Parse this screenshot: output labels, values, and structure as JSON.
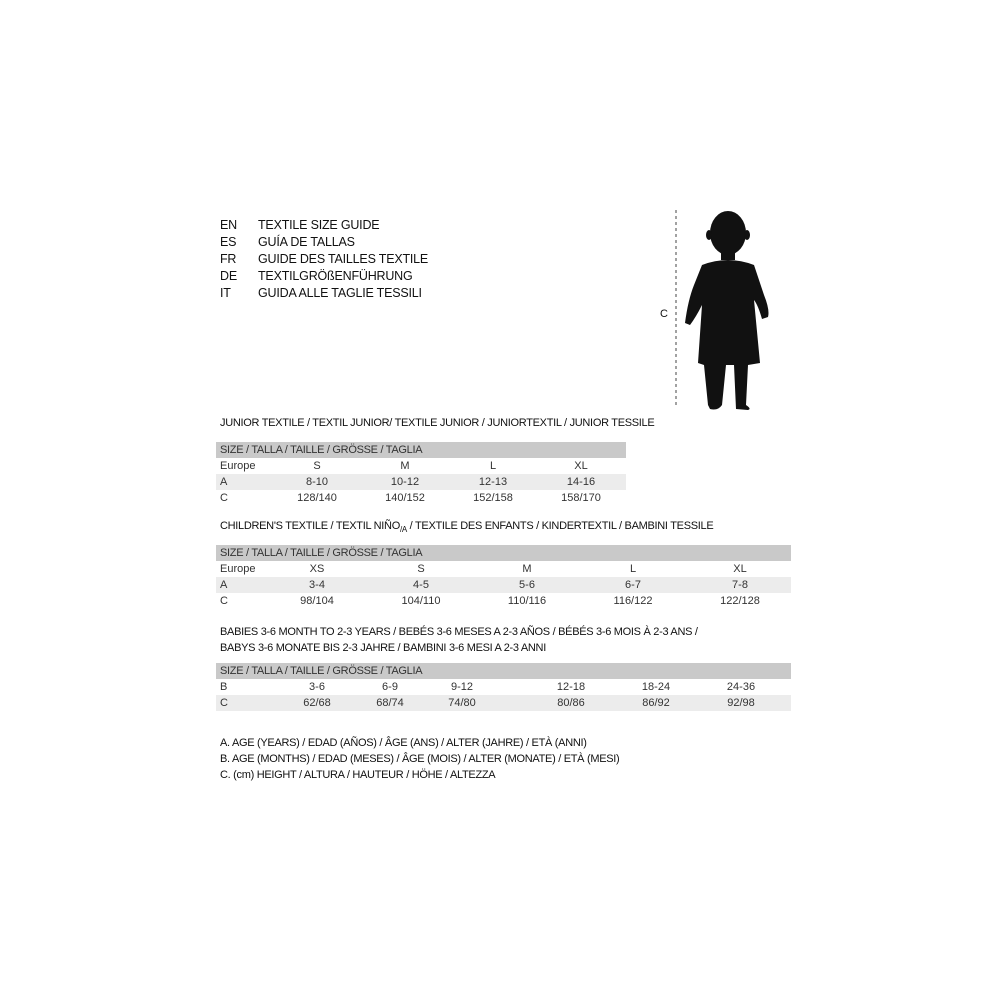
{
  "title_languages": [
    {
      "code": "EN",
      "text": "TEXTILE SIZE GUIDE"
    },
    {
      "code": "ES",
      "text": "GUÍA DE TALLAS"
    },
    {
      "code": "FR",
      "text": "GUIDE DES TAILLES TEXTILE"
    },
    {
      "code": "DE",
      "text": "TEXTILGRÖßENFÜHRUNG"
    },
    {
      "code": "IT",
      "text": "GUIDA ALLE TAGLIE TESSILI"
    }
  ],
  "figure": {
    "label": "C"
  },
  "size_header": "SIZE / TALLA / TAILLE / GRÖSSE / TAGLIA",
  "junior": {
    "title": "JUNIOR TEXTILE / TEXTIL JUNIOR/ TEXTILE JUNIOR / JUNIORTEXTIL / JUNIOR TESSILE",
    "rows": [
      {
        "label": "Europe",
        "values": [
          "S",
          "M",
          "L",
          "XL"
        ]
      },
      {
        "label": "A",
        "values": [
          "8-10",
          "10-12",
          "12-13",
          "14-16"
        ]
      },
      {
        "label": "C",
        "values": [
          "128/140",
          "140/152",
          "152/158",
          "158/170"
        ]
      }
    ]
  },
  "children": {
    "title": "CHILDREN'S TEXTILE / TEXTIL NIÑO/A / TEXTILE DES ENFANTS / KINDERTEXTIL / BAMBINI TESSILE",
    "rows": [
      {
        "label": "Europe",
        "values": [
          "XS",
          "S",
          "M",
          "L",
          "XL"
        ]
      },
      {
        "label": "A",
        "values": [
          "3-4",
          "4-5",
          "5-6",
          "6-7",
          "7-8"
        ]
      },
      {
        "label": "C",
        "values": [
          "98/104",
          "104/110",
          "110/116",
          "116/122",
          "122/128"
        ]
      }
    ]
  },
  "babies": {
    "title_line1": "BABIES 3-6 MONTH TO 2-3 YEARS / BEBÉS 3-6 MESES A 2-3 AÑOS / BÉBÉS 3-6 MOIS À 2-3 ANS /",
    "title_line2": "BABYS 3-6 MONATE BIS 2-3 JAHRE / BAMBINI 3-6 MESI A 2-3 ANNI",
    "rows": [
      {
        "label": "B",
        "values": [
          "3-6",
          "6-9",
          "9-12",
          "12-18",
          "18-24",
          "24-36"
        ]
      },
      {
        "label": "C",
        "values": [
          "62/68",
          "68/74",
          "74/80",
          "80/86",
          "86/92",
          "92/98"
        ]
      }
    ]
  },
  "legend": [
    "A. AGE (YEARS) / EDAD (AÑOS) / ÂGE (ANS) / ALTER (JAHRE) / ETÀ (ANNI)",
    "B. AGE (MONTHS) / EDAD (MESES) / ÂGE (MOIS) / ALTER (MONATE) / ETÀ (MESI)",
    "C. (cm) HEIGHT / ALTURA / HAUTEUR / HÖHE / ALTEZZA"
  ]
}
